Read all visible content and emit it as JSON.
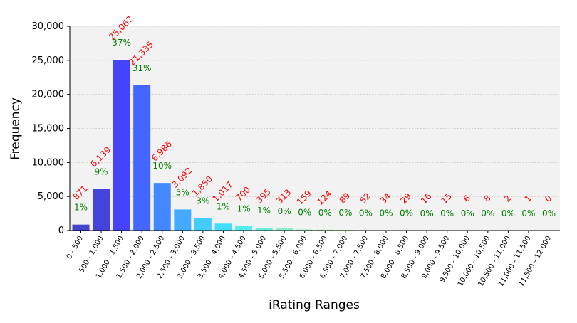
{
  "chart_data": {
    "type": "bar",
    "xlabel": "iRating Ranges",
    "ylabel": "Frequency",
    "ylim": [
      0,
      30000
    ],
    "yticks": [
      0,
      5000,
      10000,
      15000,
      20000,
      25000,
      30000
    ],
    "ytick_labels": [
      "0",
      "5,000",
      "10,000",
      "15,000",
      "20,000",
      "25,000",
      "30,000"
    ],
    "grid": true,
    "categories": [
      "0 - 500",
      "500 - 1,000",
      "1,000 - 1,500",
      "1,500 - 2,000",
      "2,000 - 2,500",
      "2,500 - 3,000",
      "3,000 - 3,500",
      "3,500 - 4,000",
      "4,000 - 4,500",
      "4,500 - 5,000",
      "5,000 - 5,500",
      "5,500 - 6,000",
      "6,000 - 6,500",
      "6,500 - 7,000",
      "7,000 - 7,500",
      "7,500 - 8,000",
      "8,000 - 8,500",
      "8,500 - 9,000",
      "9,000 - 9,500",
      "9,500 - 10,000",
      "10,000 - 10,500",
      "10,500 - 11,000",
      "11,000 - 11,500",
      "11,500 - 12,000"
    ],
    "values": [
      871,
      6139,
      25062,
      21335,
      6986,
      3092,
      1850,
      1017,
      700,
      395,
      313,
      159,
      124,
      89,
      52,
      34,
      29,
      16,
      15,
      6,
      8,
      2,
      1,
      0
    ],
    "count_labels": [
      "871",
      "6,139",
      "25,062",
      "21,335",
      "6,986",
      "3,092",
      "1,850",
      "1,017",
      "700",
      "395",
      "313",
      "159",
      "124",
      "89",
      "52",
      "34",
      "29",
      "16",
      "15",
      "6",
      "8",
      "2",
      "1",
      "0"
    ],
    "percent_labels": [
      "1%",
      "9%",
      "37%",
      "31%",
      "10%",
      "5%",
      "3%",
      "1%",
      "1%",
      "1%",
      "0%",
      "0%",
      "0%",
      "0%",
      "0%",
      "0%",
      "0%",
      "0%",
      "0%",
      "0%",
      "0%",
      "0%",
      "0%",
      "0%"
    ],
    "bar_colors": [
      "#4444cc",
      "#4444dd",
      "#4444ff",
      "#4466ff",
      "#4488ff",
      "#44aaff",
      "#44ccff",
      "#44ddff",
      "#55eeee",
      "#66eedd",
      "#88eecc",
      "#99eebb",
      "#aaee99",
      "#bbee88",
      "#ccee77",
      "#ddee66",
      "#eeee55",
      "#eedd44",
      "#eecc33",
      "#eebb33",
      "#eeaa22",
      "#ee9922",
      "#ee8811",
      "#ee7711"
    ],
    "count_label_color": "#ff0000",
    "percent_label_color": "#008000",
    "plot_background": "#f2f2f2"
  }
}
